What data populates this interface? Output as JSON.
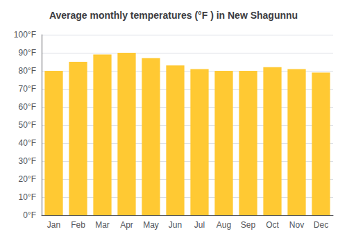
{
  "chart_data": {
    "type": "bar",
    "title": "Average monthly temperatures (°F ) in New Shagunnu",
    "categories": [
      "Jan",
      "Feb",
      "Mar",
      "Apr",
      "May",
      "Jun",
      "Jul",
      "Aug",
      "Sep",
      "Oct",
      "Nov",
      "Dec"
    ],
    "values": [
      80,
      85,
      89,
      90,
      87,
      83,
      81,
      80,
      80,
      82,
      81,
      79
    ],
    "color": "#FFC933",
    "ylim": [
      0,
      100
    ],
    "yticks": [
      {
        "value": 0,
        "label": "0°F"
      },
      {
        "value": 10,
        "label": "10°F"
      },
      {
        "value": 20,
        "label": "20°F"
      },
      {
        "value": 30,
        "label": "30°F"
      },
      {
        "value": 40,
        "label": "40°F"
      },
      {
        "value": 50,
        "label": "50°F"
      },
      {
        "value": 60,
        "label": "60°F"
      },
      {
        "value": 70,
        "label": "70°F"
      },
      {
        "value": 80,
        "label": "80°F"
      },
      {
        "value": 90,
        "label": "90°F"
      },
      {
        "value": 100,
        "label": "100°F"
      }
    ],
    "grid": true
  }
}
